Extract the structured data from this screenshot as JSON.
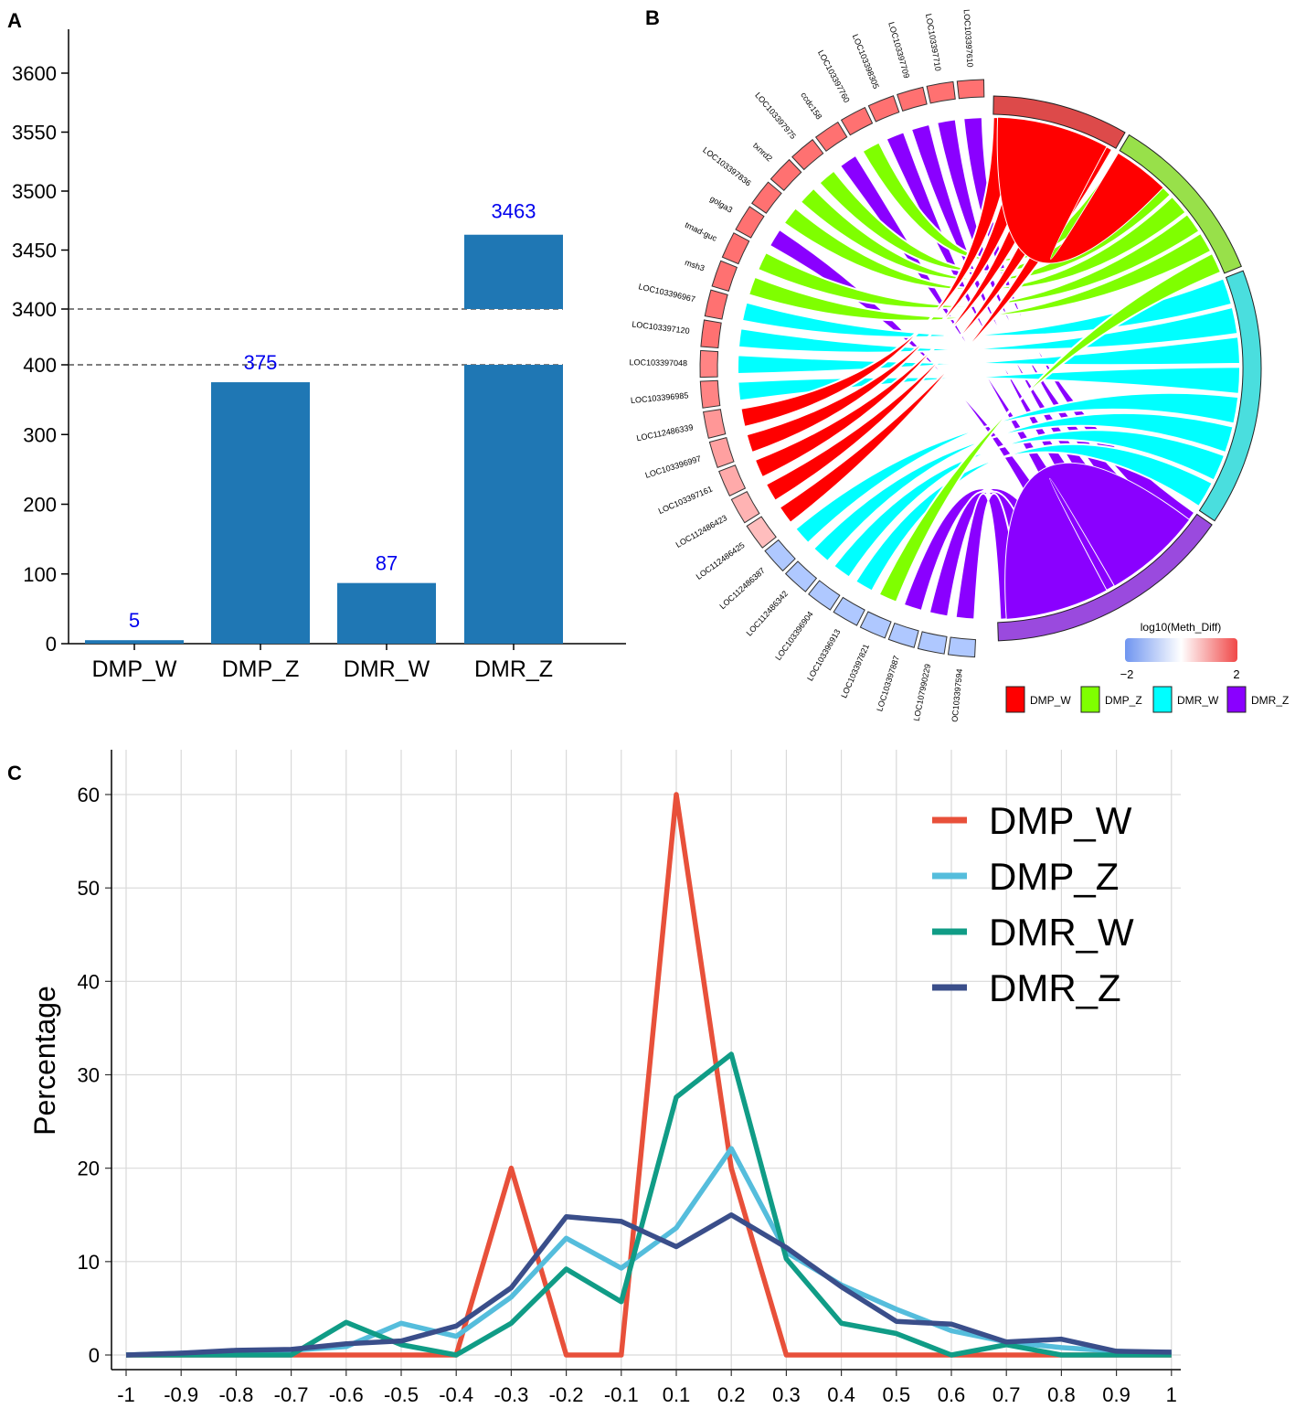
{
  "panels": {
    "a": "A",
    "b": "B",
    "c": "C"
  },
  "colors": {
    "bar": "#1f77b4",
    "bar_label": "#0000ee",
    "DMP_W": "#ff0000",
    "DMP_Z": "#7fff00",
    "DMR_W": "#00ffff",
    "DMR_Z": "#8a00ff",
    "sector_DMP_W": "#dd4a4a",
    "sector_DMP_Z": "#98e04a",
    "sector_DMR_W": "#4adede",
    "sector_DMR_Z": "#9a4ade",
    "line_DMP_W": "#e8503a",
    "line_DMP_Z": "#55bddc",
    "line_DMR_W": "#109c86",
    "line_DMR_Z": "#3a4e8a"
  },
  "chart_data": [
    {
      "type": "bar",
      "panel": "A",
      "categories": [
        "DMP_W",
        "DMP_Z",
        "DMR_W",
        "DMR_Z"
      ],
      "values": [
        5,
        375,
        87,
        3463
      ],
      "value_labels": [
        "5",
        "375",
        "87",
        "3463"
      ],
      "broken_axis": {
        "lower_ylim": [
          0,
          400
        ],
        "upper_ylim": [
          3400,
          3640
        ],
        "lower_ticks": [
          "0",
          "100",
          "200",
          "300",
          "400"
        ],
        "upper_ticks": [
          "3400",
          "3450",
          "3500",
          "3550",
          "3600"
        ]
      },
      "xlabel": "",
      "ylabel": ""
    },
    {
      "type": "chord",
      "panel": "B",
      "sectors": [
        "DMP_W",
        "DMP_Z",
        "DMR_W",
        "DMR_Z"
      ],
      "genes": [
        {
          "name": "LOC103397610",
          "value": 1.5
        },
        {
          "name": "LOC103397710",
          "value": 1.5
        },
        {
          "name": "LOC103397709",
          "value": 1.5
        },
        {
          "name": "LOC103398305",
          "value": 1.5
        },
        {
          "name": "LOC103397760",
          "value": 1.5
        },
        {
          "name": "ccdc158",
          "value": 1.5
        },
        {
          "name": "LOC103397975",
          "value": 1.5
        },
        {
          "name": "txnrd2",
          "value": 1.5
        },
        {
          "name": "LOC103397836",
          "value": 1.5
        },
        {
          "name": "golga3",
          "value": 1.5
        },
        {
          "name": "tmad-guc",
          "value": 1.5
        },
        {
          "name": "msh3",
          "value": 1.5
        },
        {
          "name": "LOC103396967",
          "value": 1.5
        },
        {
          "name": "LOC103397120",
          "value": 1.5
        },
        {
          "name": "LOC103397048",
          "value": 1.3
        },
        {
          "name": "LOC103396985",
          "value": 1.3
        },
        {
          "name": "LOC112486339",
          "value": 1.1
        },
        {
          "name": "LOC103396997",
          "value": 1.0
        },
        {
          "name": "LOC103397161",
          "value": 0.9
        },
        {
          "name": "LOC112486423",
          "value": 0.8
        },
        {
          "name": "LOC112486425",
          "value": 0.7
        },
        {
          "name": "LOC112486387",
          "value": -1.0
        },
        {
          "name": "LOC112486342",
          "value": -1.0
        },
        {
          "name": "LOC103396904",
          "value": -1.0
        },
        {
          "name": "LOC103396913",
          "value": -1.0
        },
        {
          "name": "LOC103397821",
          "value": -1.0
        },
        {
          "name": "LOC103397887",
          "value": -1.0
        },
        {
          "name": "LOC107990229",
          "value": -1.0
        },
        {
          "name": "OC103397594",
          "value": -1.0
        }
      ],
      "color_scale": {
        "title": "log10(Meth_Diff)",
        "min_label": "−2",
        "max_label": "2",
        "range": [
          -2,
          2
        ]
      },
      "legend": [
        "DMP_W",
        "DMP_Z",
        "DMR_W",
        "DMR_Z"
      ]
    },
    {
      "type": "line",
      "panel": "C",
      "x": [
        -1,
        -0.9,
        -0.8,
        -0.7,
        -0.6,
        -0.5,
        -0.4,
        -0.3,
        -0.2,
        -0.1,
        0.1,
        0.2,
        0.3,
        0.4,
        0.5,
        0.6,
        0.7,
        0.8,
        0.9,
        1
      ],
      "x_tick_labels": [
        "-1",
        "-0.9",
        "-0.8",
        "-0.7",
        "-0.6",
        "-0.5",
        "-0.4",
        "-0.3",
        "-0.2",
        "-0.1",
        "0.1",
        "0.2",
        "0.3",
        "0.4",
        "0.5",
        "0.6",
        "0.7",
        "0.8",
        "0.9",
        "1"
      ],
      "series": [
        {
          "name": "DMP_W",
          "values": [
            0,
            0,
            0,
            0,
            0,
            0,
            0,
            20,
            0,
            0,
            60,
            20,
            0,
            0,
            0,
            0,
            0,
            0,
            0,
            0
          ]
        },
        {
          "name": "DMP_Z",
          "values": [
            0,
            0.2,
            0.4,
            0.5,
            0.9,
            3.4,
            2.0,
            6.2,
            12.5,
            9.3,
            13.6,
            22.1,
            11.0,
            7.5,
            4.9,
            2.6,
            1.4,
            0.8,
            0.4,
            0.2
          ]
        },
        {
          "name": "DMR_W",
          "values": [
            0,
            0,
            0,
            0,
            3.5,
            1.1,
            0,
            3.4,
            9.2,
            5.7,
            27.6,
            32.2,
            10.3,
            3.4,
            2.3,
            0,
            1.1,
            0,
            0,
            0
          ]
        },
        {
          "name": "DMR_Z",
          "values": [
            0,
            0.2,
            0.5,
            0.6,
            1.2,
            1.5,
            3.1,
            7.2,
            14.8,
            14.3,
            11.6,
            15.0,
            11.5,
            7.3,
            3.6,
            3.3,
            1.4,
            1.7,
            0.4,
            0.3
          ]
        }
      ],
      "ylim": [
        -1.5,
        63
      ],
      "y_ticks": [
        "0",
        "10",
        "20",
        "30",
        "40",
        "50",
        "60"
      ],
      "ylabel": "Percentage",
      "xlabel": "",
      "legend": [
        "DMP_W",
        "DMP_Z",
        "DMR_W",
        "DMR_Z"
      ]
    }
  ]
}
